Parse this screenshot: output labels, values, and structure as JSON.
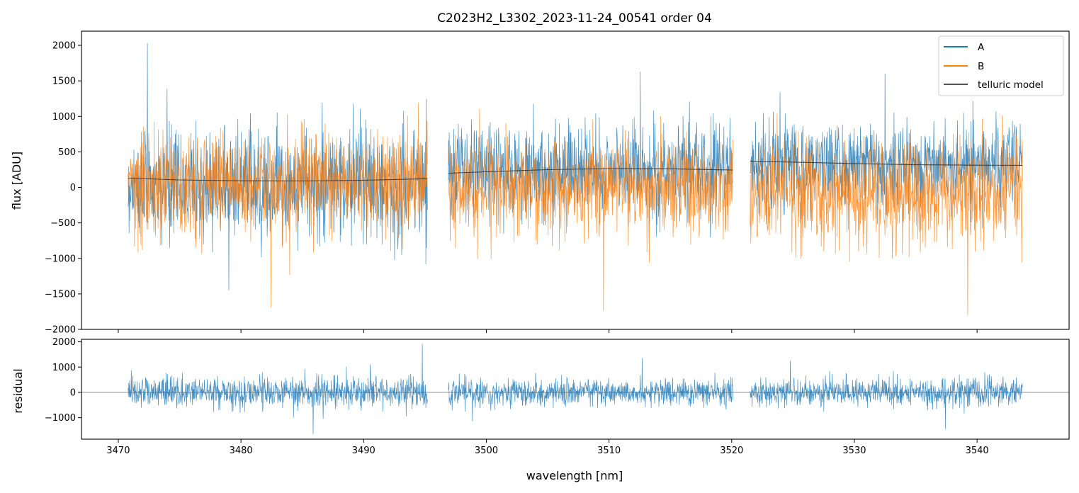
{
  "chart_data": {
    "type": "line",
    "title": "C2023H2_L3302_2023-11-24_00541  order 04",
    "xlabel": "wavelength [nm]",
    "xlim": [
      3467,
      3547.5
    ],
    "x_ticks": [
      3470,
      3480,
      3490,
      3500,
      3510,
      3520,
      3530,
      3540
    ],
    "grid": false,
    "segments": [
      {
        "x_start": 3470.8,
        "x_end": 3495.2
      },
      {
        "x_start": 3496.9,
        "x_end": 3520.1
      },
      {
        "x_start": 3521.5,
        "x_end": 3543.7
      }
    ],
    "panels": [
      {
        "name": "flux",
        "ylabel": "flux [ADU]",
        "ylim": [
          -2000,
          2200
        ],
        "y_ticks": [
          -2000,
          -1500,
          -1000,
          -500,
          0,
          500,
          1000,
          1500,
          2000
        ],
        "legend_position": "top-right",
        "series": [
          {
            "name": "A",
            "color": "#1f77b4",
            "segment_stats": [
              {
                "mean": 40,
                "std": 380,
                "max": 2030
              },
              {
                "mean": 250,
                "std": 330,
                "max": 1630
              },
              {
                "mean": 330,
                "std": 300,
                "max": 1600
              }
            ]
          },
          {
            "name": "B",
            "color": "#ff7f0e",
            "segment_stats": [
              {
                "mean": 60,
                "std": 360,
                "min": -1690
              },
              {
                "mean": 0,
                "std": 340,
                "min": -1740
              },
              {
                "mean": -80,
                "std": 360,
                "min": -1800
              }
            ]
          },
          {
            "name": "telluric model",
            "color": "#555555",
            "points": [
              [
                3470.8,
                130
              ],
              [
                3475,
                105
              ],
              [
                3480,
                92
              ],
              [
                3485,
                90
              ],
              [
                3490,
                100
              ],
              [
                3495.2,
                122
              ],
              [
                3496.9,
                200
              ],
              [
                3500,
                220
              ],
              [
                3505,
                250
              ],
              [
                3510,
                265
              ],
              [
                3515,
                262
              ],
              [
                3520.1,
                245
              ],
              [
                3521.5,
                370
              ],
              [
                3525,
                355
              ],
              [
                3530,
                335
              ],
              [
                3535,
                318
              ],
              [
                3540,
                312
              ],
              [
                3543.7,
                310
              ]
            ]
          }
        ]
      },
      {
        "name": "residual",
        "ylabel": "residual",
        "ylim": [
          -1850,
          2100
        ],
        "y_ticks": [
          -1000,
          0,
          1000,
          2000
        ],
        "series": [
          {
            "name": "residual",
            "color": "#1f77b4",
            "segment_stats": [
              {
                "mean": 0,
                "std": 330,
                "max": 1930,
                "min": -1650
              },
              {
                "mean": 0,
                "std": 270,
                "max": 1350,
                "min": -1150
              },
              {
                "mean": 0,
                "std": 280,
                "max": 1250,
                "min": -1450
              }
            ]
          }
        ],
        "reference_line": {
          "y": 0,
          "color": "#808080"
        }
      }
    ]
  }
}
